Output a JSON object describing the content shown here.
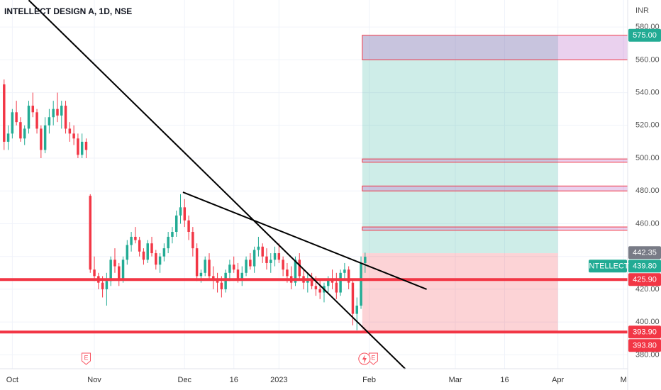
{
  "chart_data": {
    "type": "candlestick",
    "title": "INTELLECT DESIGN A, 1D, NSE",
    "axis_unit": "INR",
    "symbol": "INTELLECT",
    "up_color": "#22ab94",
    "down_color": "#f23645",
    "open": [
      545,
      510,
      515,
      528,
      522,
      512,
      518,
      532,
      528,
      518,
      505,
      520,
      525,
      530,
      526,
      532,
      518,
      515,
      512,
      502,
      510,
      477,
      432,
      428,
      424,
      420,
      425,
      438,
      434,
      426,
      438,
      447,
      452,
      450,
      443,
      438,
      448,
      442,
      435,
      440,
      445,
      452,
      455,
      465,
      470,
      462,
      455,
      445,
      428,
      430,
      438,
      428,
      426,
      424,
      420,
      430,
      435,
      432,
      426,
      430,
      438,
      434,
      444,
      446,
      440,
      436,
      438,
      442,
      438,
      432,
      428,
      424,
      438,
      428,
      424,
      426,
      422,
      420,
      418,
      422,
      426,
      424,
      418,
      430,
      432,
      424,
      405,
      410,
      436
    ],
    "high": [
      548,
      520,
      530,
      535,
      525,
      520,
      535,
      540,
      530,
      520,
      525,
      530,
      535,
      540,
      535,
      535,
      522,
      520,
      515,
      515,
      512,
      478,
      440,
      430,
      428,
      430,
      440,
      445,
      436,
      440,
      450,
      455,
      458,
      452,
      445,
      450,
      452,
      444,
      442,
      448,
      455,
      458,
      468,
      478,
      475,
      465,
      458,
      448,
      432,
      440,
      442,
      434,
      430,
      428,
      432,
      438,
      440,
      436,
      434,
      440,
      442,
      446,
      452,
      448,
      445,
      442,
      446,
      448,
      440,
      436,
      434,
      440,
      442,
      432,
      430,
      430,
      428,
      426,
      424,
      428,
      432,
      430,
      432,
      436,
      434,
      426,
      415,
      440,
      442.35
    ],
    "low": [
      505,
      505,
      512,
      520,
      510,
      508,
      515,
      525,
      515,
      500,
      503,
      515,
      520,
      522,
      518,
      515,
      510,
      508,
      500,
      500,
      500,
      430,
      425,
      420,
      415,
      410,
      422,
      430,
      422,
      424,
      435,
      443,
      448,
      440,
      435,
      436,
      440,
      432,
      430,
      437,
      442,
      448,
      452,
      460,
      458,
      450,
      440,
      425,
      424,
      428,
      426,
      420,
      418,
      415,
      418,
      425,
      430,
      424,
      422,
      428,
      432,
      430,
      440,
      436,
      432,
      430,
      434,
      436,
      428,
      424,
      420,
      422,
      426,
      420,
      418,
      420,
      416,
      414,
      412,
      418,
      420,
      414,
      416,
      426,
      420,
      398,
      395,
      408,
      430
    ],
    "close": [
      510,
      515,
      528,
      522,
      512,
      518,
      532,
      528,
      518,
      505,
      520,
      525,
      530,
      526,
      532,
      518,
      515,
      512,
      502,
      510,
      505,
      432,
      428,
      424,
      420,
      425,
      438,
      434,
      426,
      438,
      447,
      452,
      450,
      443,
      438,
      448,
      442,
      435,
      440,
      445,
      452,
      455,
      465,
      470,
      462,
      455,
      445,
      428,
      430,
      438,
      428,
      426,
      424,
      420,
      430,
      435,
      432,
      426,
      430,
      438,
      434,
      444,
      446,
      440,
      436,
      438,
      442,
      438,
      432,
      428,
      424,
      438,
      428,
      424,
      426,
      422,
      420,
      418,
      422,
      426,
      424,
      418,
      430,
      432,
      424,
      405,
      410,
      436,
      439.8
    ],
    "xlim": [
      -1,
      152
    ],
    "ylim": [
      371.5,
      596.5
    ],
    "xticks": [
      {
        "value": 2,
        "label": "Oct"
      },
      {
        "value": 22,
        "label": "Nov"
      },
      {
        "value": 44,
        "label": "Dec"
      },
      {
        "value": 56,
        "label": "16"
      },
      {
        "value": 67,
        "label": "2023"
      },
      {
        "value": 89,
        "label": "Feb"
      },
      {
        "value": 110,
        "label": "Mar"
      },
      {
        "value": 122,
        "label": "16"
      },
      {
        "value": 135,
        "label": "Apr"
      },
      {
        "value": 151,
        "label": "M"
      }
    ],
    "yticks": [
      {
        "value": 380,
        "label": "380.00"
      },
      {
        "value": 400,
        "label": "400.00"
      },
      {
        "value": 420,
        "label": "420.00"
      },
      {
        "value": 440,
        "label": "440.00"
      },
      {
        "value": 460,
        "label": "460.00"
      },
      {
        "value": 480,
        "label": "480.00"
      },
      {
        "value": 500,
        "label": "500.00"
      },
      {
        "value": 520,
        "label": "520.00"
      },
      {
        "value": 540,
        "label": "540.00"
      },
      {
        "value": 560,
        "label": "560.00"
      },
      {
        "value": 580,
        "label": "580.00"
      }
    ],
    "grid": true,
    "horizontal_lines": [
      425.9,
      393.9
    ],
    "trend_lines": [
      [
        6,
        596.4,
        97.8,
        371.4
      ],
      [
        43.6,
        479.2,
        103,
        420
      ]
    ],
    "zones": [
      [
        560,
        575
      ],
      [
        497.5,
        499.5
      ],
      [
        480,
        483
      ],
      [
        456,
        458
      ]
    ],
    "position": {
      "start": 88,
      "end": 135,
      "entry": 442,
      "target": 575,
      "stop": 393.8
    },
    "price_labels": [
      {
        "value": 575,
        "label": "575.00",
        "color": "#22ab94"
      },
      {
        "value": 442.35,
        "label": "442.35",
        "color": "#787b86"
      },
      {
        "value": 439.8,
        "label": "439.80",
        "color": "#22ab94"
      },
      {
        "value": 425.9,
        "label": "425.90",
        "color": "#f23645"
      },
      {
        "value": 393.9,
        "label": "393.90",
        "color": "#f23645"
      },
      {
        "value": 393.8,
        "label": "393.80",
        "color": "#f23645"
      }
    ],
    "events": [
      {
        "x": 20,
        "label": "E"
      },
      {
        "x": 90,
        "label": "E"
      }
    ]
  }
}
